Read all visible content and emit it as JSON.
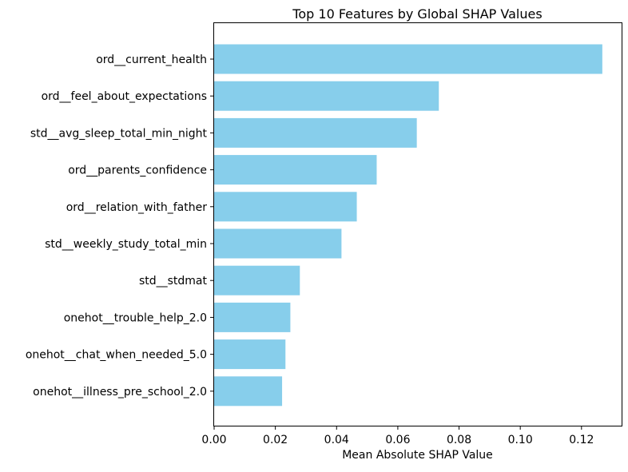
{
  "chart_data": {
    "type": "bar",
    "orientation": "horizontal",
    "title": "Top 10 Features by Global SHAP Values",
    "xlabel": "Mean Absolute SHAP Value",
    "ylabel": "",
    "categories": [
      "ord__current_health",
      "ord__feel_about_expectations",
      "std__avg_sleep_total_min_night",
      "ord__parents_confidence",
      "ord__relation_with_father",
      "std__weekly_study_total_min",
      "std__stdmat",
      "onehot__trouble_help_2.0",
      "onehot__chat_when_needed_5.0",
      "onehot__illness_pre_school_2.0"
    ],
    "values": [
      0.1268,
      0.0734,
      0.0662,
      0.0531,
      0.0466,
      0.0416,
      0.028,
      0.0249,
      0.0233,
      0.0222
    ],
    "xlim": [
      0,
      0.1331
    ],
    "xticks": [
      0.0,
      0.02,
      0.04,
      0.06,
      0.08,
      0.1,
      0.12
    ],
    "xtick_labels": [
      "0.00",
      "0.02",
      "0.04",
      "0.06",
      "0.08",
      "0.10",
      "0.12"
    ],
    "bar_color": "#87CEEB",
    "grid": false,
    "legend": "none"
  }
}
